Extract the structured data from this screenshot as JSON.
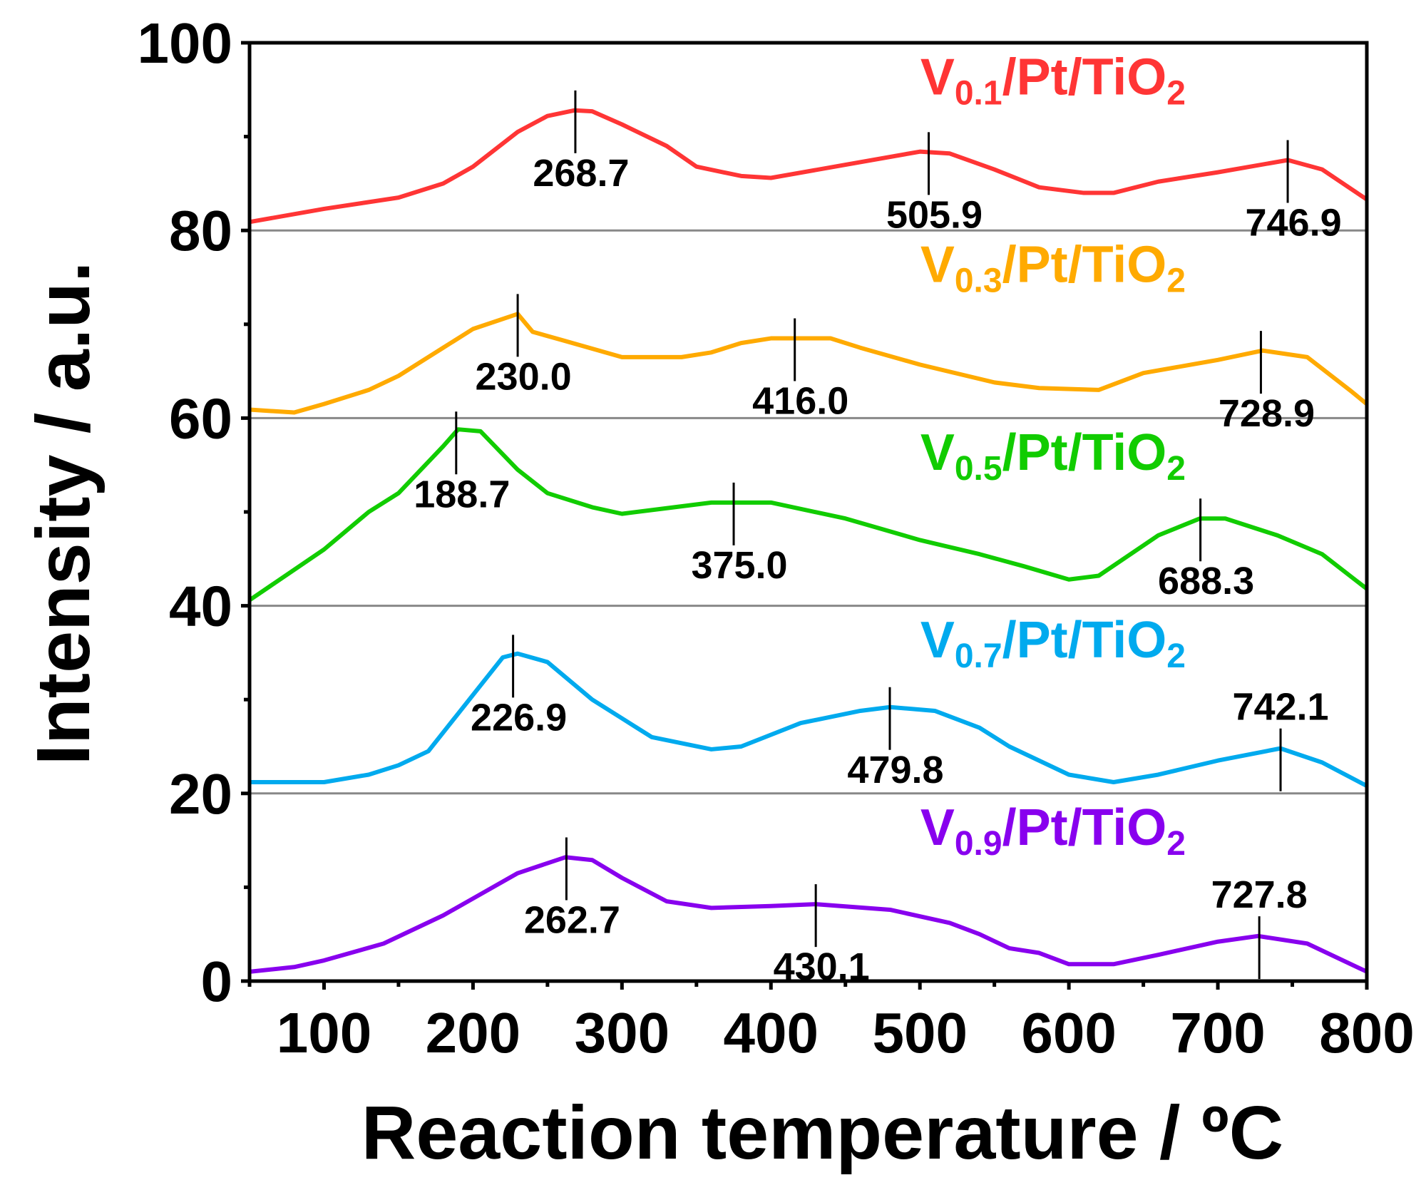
{
  "chart_data": {
    "type": "line",
    "title": "",
    "xlabel": "Reaction temperature / ºC",
    "ylabel": "Intensity / a.u.",
    "xlim": [
      50,
      800
    ],
    "ylim": [
      0,
      100
    ],
    "xticks": [
      100,
      200,
      300,
      400,
      500,
      600,
      700,
      800
    ],
    "yticks": [
      0,
      20,
      40,
      60,
      80,
      100
    ],
    "baselines": [
      20,
      40,
      60,
      80
    ],
    "grid": false,
    "series": [
      {
        "name": "V0.1/Pt/TiO2",
        "label_main": "V",
        "label_sub": "0.1",
        "label_rest": "/Pt/TiO",
        "label_sub2": "2",
        "color": "#ff3535",
        "legend_y": 94.5,
        "points": [
          [
            50,
            80.9
          ],
          [
            100,
            82.3
          ],
          [
            150,
            83.5
          ],
          [
            180,
            85
          ],
          [
            200,
            86.8
          ],
          [
            230,
            90.5
          ],
          [
            250,
            92.2
          ],
          [
            268,
            92.8
          ],
          [
            280,
            92.7
          ],
          [
            300,
            91.3
          ],
          [
            330,
            89
          ],
          [
            350,
            86.8
          ],
          [
            380,
            85.8
          ],
          [
            400,
            85.6
          ],
          [
            450,
            87
          ],
          [
            500,
            88.4
          ],
          [
            520,
            88.2
          ],
          [
            550,
            86.5
          ],
          [
            580,
            84.6
          ],
          [
            610,
            84
          ],
          [
            630,
            84
          ],
          [
            660,
            85.2
          ],
          [
            700,
            86.2
          ],
          [
            747,
            87.5
          ],
          [
            770,
            86.5
          ],
          [
            800,
            83.3
          ]
        ],
        "peaks": [
          {
            "x": 268.7,
            "label": "268.7",
            "pos": "below"
          },
          {
            "x": 505.9,
            "label": "505.9",
            "pos": "below"
          },
          {
            "x": 746.9,
            "label": "746.9",
            "pos": "below"
          }
        ]
      },
      {
        "name": "V0.3/Pt/TiO2",
        "label_main": "V",
        "label_sub": "0.3",
        "label_rest": "/Pt/TiO",
        "label_sub2": "2",
        "color": "#ffaa00",
        "legend_y": 74.5,
        "points": [
          [
            50,
            60.9
          ],
          [
            80,
            60.6
          ],
          [
            100,
            61.5
          ],
          [
            130,
            63
          ],
          [
            150,
            64.5
          ],
          [
            180,
            67.5
          ],
          [
            200,
            69.5
          ],
          [
            230,
            71.1
          ],
          [
            240,
            69.2
          ],
          [
            260,
            68.3
          ],
          [
            300,
            66.5
          ],
          [
            340,
            66.5
          ],
          [
            360,
            67
          ],
          [
            380,
            68
          ],
          [
            400,
            68.5
          ],
          [
            440,
            68.5
          ],
          [
            460,
            67.5
          ],
          [
            500,
            65.7
          ],
          [
            550,
            63.8
          ],
          [
            580,
            63.2
          ],
          [
            620,
            63
          ],
          [
            650,
            64.8
          ],
          [
            700,
            66.2
          ],
          [
            730,
            67.2
          ],
          [
            760,
            66.5
          ],
          [
            790,
            62.8
          ],
          [
            800,
            61.5
          ]
        ],
        "peaks": [
          {
            "x": 230.0,
            "label": "230.0",
            "pos": "below"
          },
          {
            "x": 416.0,
            "label": "416.0",
            "pos": "below"
          },
          {
            "x": 728.9,
            "label": "728.9",
            "pos": "below"
          }
        ]
      },
      {
        "name": "V0.5/Pt/TiO2",
        "label_main": "V",
        "label_sub": "0.5",
        "label_rest": "/Pt/TiO",
        "label_sub2": "2",
        "color": "#11cc00",
        "legend_y": 54.5,
        "points": [
          [
            50,
            40.6
          ],
          [
            100,
            46
          ],
          [
            130,
            50
          ],
          [
            150,
            52
          ],
          [
            180,
            57
          ],
          [
            190,
            58.8
          ],
          [
            205,
            58.6
          ],
          [
            230,
            54.5
          ],
          [
            250,
            52
          ],
          [
            280,
            50.5
          ],
          [
            300,
            49.8
          ],
          [
            330,
            50.4
          ],
          [
            360,
            51
          ],
          [
            400,
            51
          ],
          [
            450,
            49.3
          ],
          [
            500,
            47
          ],
          [
            540,
            45.5
          ],
          [
            570,
            44.2
          ],
          [
            600,
            42.8
          ],
          [
            620,
            43.2
          ],
          [
            660,
            47.5
          ],
          [
            688,
            49.3
          ],
          [
            705,
            49.3
          ],
          [
            740,
            47.5
          ],
          [
            770,
            45.5
          ],
          [
            800,
            41.8
          ]
        ],
        "peaks": [
          {
            "x": 188.7,
            "label": "188.7",
            "pos": "below"
          },
          {
            "x": 375.0,
            "label": "375.0",
            "pos": "below"
          },
          {
            "x": 688.3,
            "label": "688.3",
            "pos": "below"
          }
        ]
      },
      {
        "name": "V0.7/Pt/TiO2",
        "label_main": "V",
        "label_sub": "0.7",
        "label_rest": "/Pt/TiO",
        "label_sub2": "2",
        "color": "#00aaee",
        "legend_y": 34.5,
        "points": [
          [
            50,
            21.2
          ],
          [
            100,
            21.2
          ],
          [
            130,
            22
          ],
          [
            150,
            23
          ],
          [
            170,
            24.5
          ],
          [
            200,
            30.5
          ],
          [
            220,
            34.5
          ],
          [
            230,
            34.9
          ],
          [
            250,
            34
          ],
          [
            280,
            30
          ],
          [
            300,
            28
          ],
          [
            320,
            26
          ],
          [
            360,
            24.7
          ],
          [
            380,
            25
          ],
          [
            420,
            27.5
          ],
          [
            460,
            28.8
          ],
          [
            480,
            29.2
          ],
          [
            510,
            28.8
          ],
          [
            540,
            27
          ],
          [
            560,
            25
          ],
          [
            600,
            22
          ],
          [
            630,
            21.2
          ],
          [
            660,
            22
          ],
          [
            700,
            23.5
          ],
          [
            742,
            24.8
          ],
          [
            770,
            23.3
          ],
          [
            800,
            20.8
          ]
        ],
        "peaks": [
          {
            "x": 226.9,
            "label": "226.9",
            "pos": "below"
          },
          {
            "x": 479.8,
            "label": "479.8",
            "pos": "below"
          },
          {
            "x": 742.1,
            "label": "742.1",
            "pos": "above"
          }
        ]
      },
      {
        "name": "V0.9/Pt/TiO2",
        "label_main": "V",
        "label_sub": "0.9",
        "label_rest": "/Pt/TiO",
        "label_sub2": "2",
        "color": "#8800ee",
        "legend_y": 14.5,
        "points": [
          [
            50,
            1
          ],
          [
            80,
            1.5
          ],
          [
            100,
            2.2
          ],
          [
            140,
            4
          ],
          [
            180,
            7
          ],
          [
            200,
            8.8
          ],
          [
            230,
            11.5
          ],
          [
            262,
            13.2
          ],
          [
            280,
            12.9
          ],
          [
            300,
            11
          ],
          [
            330,
            8.5
          ],
          [
            360,
            7.8
          ],
          [
            400,
            8
          ],
          [
            430,
            8.2
          ],
          [
            480,
            7.6
          ],
          [
            520,
            6.2
          ],
          [
            540,
            5
          ],
          [
            560,
            3.5
          ],
          [
            580,
            3
          ],
          [
            600,
            1.8
          ],
          [
            630,
            1.8
          ],
          [
            660,
            2.8
          ],
          [
            700,
            4.2
          ],
          [
            727,
            4.8
          ],
          [
            760,
            4
          ],
          [
            800,
            1
          ]
        ],
        "peaks": [
          {
            "x": 262.7,
            "label": "262.7",
            "pos": "below"
          },
          {
            "x": 430.1,
            "label": "430.1",
            "pos": "below"
          },
          {
            "x": 727.8,
            "label": "727.8",
            "pos": "above"
          }
        ]
      }
    ]
  }
}
